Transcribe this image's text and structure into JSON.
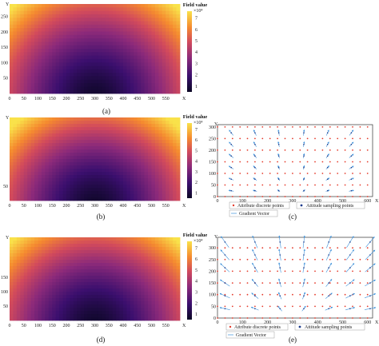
{
  "chart_data": [
    {
      "type": "heatmap",
      "panel": "(a)",
      "colorbar": {
        "title": "Field value",
        "exponent": "×10⁴",
        "ticks": [
          "1",
          "2",
          "3",
          "4",
          "5",
          "6",
          "7"
        ],
        "range": [
          0.5,
          7.6
        ]
      },
      "xticks": [
        "0",
        "50",
        "100",
        "150",
        "200",
        "250",
        "300",
        "350",
        "400",
        "450",
        "500",
        "550"
      ],
      "xlabel": "X",
      "yticks": [
        "50",
        "100",
        "150",
        "200",
        "250"
      ],
      "ylabel": "Y",
      "xlim": [
        0,
        600
      ],
      "ylim": [
        0,
        290
      ]
    },
    {
      "type": "heatmap",
      "panel": "(b)",
      "colorbar": {
        "title": "Field value",
        "exponent": "×10⁴",
        "ticks": [
          "1",
          "2",
          "3",
          "4",
          "5",
          "6",
          "7"
        ],
        "range": [
          0.5,
          7.6
        ]
      },
      "xticks": [
        "0",
        "50",
        "100",
        "150",
        "200",
        "250",
        "300",
        "350",
        "400",
        "450",
        "500",
        "550"
      ],
      "xlabel": "X",
      "yticks": [
        "50"
      ],
      "ylabel": "Y",
      "xlim": [
        0,
        600
      ],
      "ylim": [
        0,
        290
      ]
    },
    {
      "type": "scatter",
      "panel": "(c)",
      "xticks": [
        "0",
        "100",
        "200",
        "300",
        "400",
        "500",
        "600"
      ],
      "xlabel": "X",
      "yticks": [
        "0",
        "50",
        "100",
        "150",
        "200",
        "250",
        "300"
      ],
      "ylabel": "Y",
      "xlim": [
        0,
        620
      ],
      "ylim": [
        0,
        310
      ],
      "legend": [
        "Attribute discrete points",
        "Attitude sampling points",
        "Gradient Vector"
      ],
      "attribute_grid": {
        "x_step": 30,
        "x_max": 600,
        "y_values": [
          0,
          50,
          100,
          150,
          200,
          250,
          300
        ]
      },
      "vector_rows_y": [
        25,
        75,
        125,
        175,
        225,
        275
      ],
      "vector_cols_x": [
        55,
        150,
        245,
        345,
        440,
        535
      ]
    },
    {
      "type": "heatmap",
      "panel": "(d)",
      "colorbar": {
        "title": "Field value",
        "exponent": "×10⁴",
        "ticks": [
          "1",
          "2",
          "3",
          "4",
          "5",
          "6",
          "7"
        ],
        "range": [
          0.5,
          7.6
        ]
      },
      "xticks": [
        "0",
        "50",
        "100",
        "150",
        "200",
        "250",
        "300",
        "350",
        "400",
        "450",
        "500",
        "550"
      ],
      "xlabel": "X",
      "yticks": [
        "50",
        "100",
        "150"
      ],
      "ylabel": "Y",
      "xlim": [
        0,
        600
      ],
      "ylim": [
        0,
        290
      ]
    },
    {
      "type": "scatter",
      "panel": "(e)",
      "xticks": [
        "0",
        "100",
        "200",
        "300",
        "400",
        "500",
        "600"
      ],
      "xlabel": "X",
      "yticks": [
        "0",
        "50",
        "100",
        "150",
        "200",
        "250",
        "300"
      ],
      "ylabel": "Y",
      "xlim": [
        0,
        620
      ],
      "ylim": [
        0,
        345
      ],
      "legend": [
        "Attribute discrete points",
        "Attitude sampling points",
        "Gradient Vector"
      ],
      "attribute_grid": {
        "x_step": 30,
        "x_max": 600,
        "y_values": [
          0,
          50,
          100,
          150,
          200,
          250,
          300
        ]
      },
      "vector_rows_y": [
        40,
        95,
        150,
        215,
        270,
        325
      ],
      "vector_cols_x": [
        30,
        150,
        250,
        345,
        445,
        530,
        610
      ]
    }
  ]
}
